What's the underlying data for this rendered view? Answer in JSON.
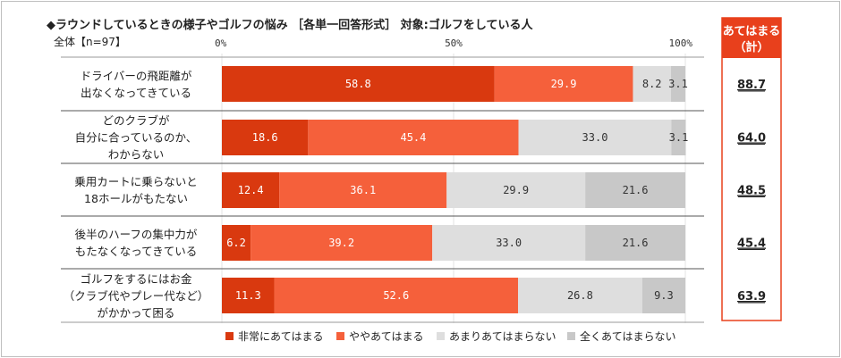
{
  "header": {
    "title": "◆ラウンドしているときの様子やゴルフの悩み ［各単一回答形式］ 対象:ゴルフをしている人",
    "subtitle": "全体【n=97】"
  },
  "summary_header": [
    "あてはまる",
    "（計）"
  ],
  "chart_data": {
    "type": "bar",
    "orientation": "horizontal",
    "stacked": true,
    "title": "◆ラウンドしているときの様子やゴルフの悩み ［各単一回答形式］ 対象:ゴルフをしている人",
    "xlim": [
      0,
      100
    ],
    "x_tick_labels": [
      "0%",
      "50%",
      "100%"
    ],
    "grid": true,
    "legend_position": "bottom",
    "categories": [
      [
        "ドライバーの飛距離が",
        "出なくなってきている"
      ],
      [
        "どのクラブが",
        "自分に合っているのか、",
        "わからない"
      ],
      [
        "乗用カートに乗らないと",
        "18ホールがもたない"
      ],
      [
        "後半のハーフの集中力が",
        "もたなくなってきている"
      ],
      [
        "ゴルフをするにはお金",
        "（クラブ代やプレー代など）",
        "がかかって困る"
      ]
    ],
    "series": [
      {
        "name": "非常にあてはまる",
        "color": "#d9390f",
        "text_color": "#ffffff",
        "values": [
          58.8,
          18.6,
          12.4,
          6.2,
          11.3
        ]
      },
      {
        "name": "ややあてはまる",
        "color": "#f5603b",
        "text_color": "#ffffff",
        "values": [
          29.9,
          45.4,
          36.1,
          39.2,
          52.6
        ]
      },
      {
        "name": "あまりあてはまらない",
        "color": "#dedede",
        "text_color": "#333333",
        "values": [
          8.2,
          33.0,
          29.9,
          33.0,
          26.8
        ]
      },
      {
        "name": "全くあてはまらない",
        "color": "#c8c8c8",
        "text_color": "#333333",
        "values": [
          3.1,
          3.1,
          21.6,
          21.6,
          9.3
        ]
      }
    ],
    "summary_values": [
      "88.7",
      "64.0",
      "48.5",
      "45.4",
      "63.9"
    ]
  }
}
